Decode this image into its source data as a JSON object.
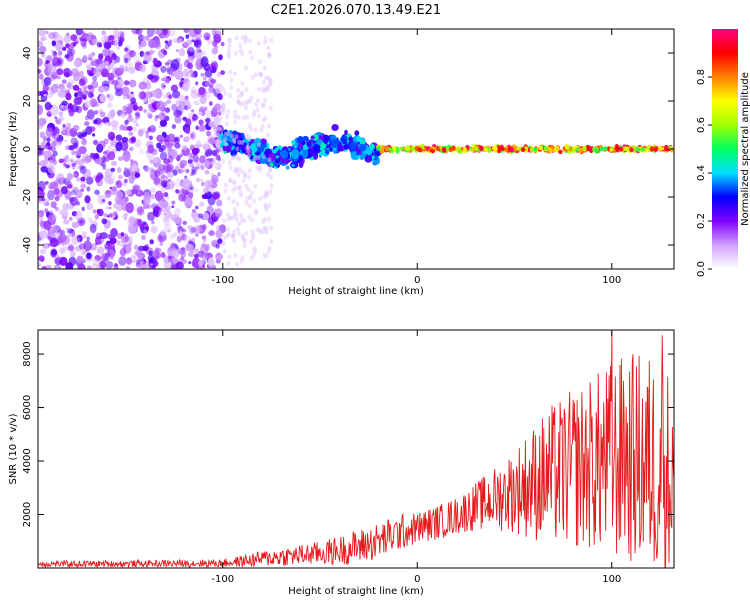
{
  "title": "C2E1.2026.070.13.49.E21",
  "colors": {
    "axis": "#000000",
    "snr_line": "#e41a1c",
    "speckle": "#6a00ff",
    "background": "#ffffff"
  },
  "chart_data": [
    {
      "type": "heatmap",
      "name": "spectrogram",
      "xlabel": "Height of straight line (km)",
      "ylabel": "Frequency (Hz)",
      "xlim": [
        -195,
        132
      ],
      "ylim": [
        -50,
        50
      ],
      "xticks": [
        -100,
        0,
        100
      ],
      "yticks": [
        -40,
        -20,
        0,
        20,
        40
      ],
      "xtick_labels": [
        "-100",
        "0",
        "100"
      ],
      "ytick_labels": [
        "-40",
        "-20",
        "0",
        "20",
        "40"
      ],
      "grid": false,
      "description_regions": [
        {
          "x_range": [
            -195,
            -100
          ],
          "freq_spread": 50,
          "amplitude": [
            0.05,
            0.25
          ],
          "density": "dense"
        },
        {
          "x_range": [
            -100,
            -20
          ],
          "freq_spread": 12,
          "amplitude": [
            0.2,
            0.45
          ],
          "density": "medium"
        },
        {
          "x_range": [
            -20,
            132
          ],
          "freq_spread": 3,
          "amplitude": [
            0.5,
            1.0
          ],
          "density": "tone"
        }
      ],
      "colorbar": {
        "label": "Normalized spectral amplitude",
        "range": [
          0,
          1
        ],
        "ticks": [
          0.0,
          0.2,
          0.4,
          0.6,
          0.8
        ],
        "tick_labels": [
          "0.0",
          "0.2",
          "0.4",
          "0.6",
          "0.8"
        ],
        "colormap": [
          "#ffffff",
          "#d0a0ff",
          "#8000ff",
          "#0000ff",
          "#00e0ff",
          "#00ff60",
          "#a0ff00",
          "#ffff00",
          "#ff8000",
          "#ff0000",
          "#ff0080"
        ]
      }
    },
    {
      "type": "line",
      "name": "snr",
      "xlabel": "Height of straight line (km)",
      "ylabel": "SNR (10 * v/v)",
      "xlim": [
        -195,
        132
      ],
      "ylim": [
        0,
        8900
      ],
      "xticks": [
        -100,
        0,
        100
      ],
      "yticks": [
        2000,
        4000,
        6000,
        8000
      ],
      "xtick_labels": [
        "-100",
        "0",
        "100"
      ],
      "ytick_labels": [
        "2000",
        "4000",
        "6000",
        "8000"
      ],
      "grid": false,
      "series": [
        {
          "name": "SNR",
          "envelope_x": [
            -195,
            -150,
            -100,
            -90,
            -80,
            -70,
            -60,
            -50,
            -40,
            -30,
            -20,
            -10,
            0,
            10,
            20,
            30,
            40,
            50,
            60,
            70,
            80,
            90,
            100,
            110,
            120,
            130
          ],
          "envelope_mean": [
            150,
            160,
            180,
            250,
            350,
            420,
            480,
            560,
            650,
            800,
            1000,
            1300,
            1500,
            1700,
            1950,
            2300,
            2600,
            2900,
            3200,
            3500,
            3700,
            3900,
            4000,
            4100,
            3900,
            3500
          ],
          "envelope_amp": [
            120,
            120,
            150,
            220,
            300,
            350,
            400,
            450,
            550,
            650,
            700,
            700,
            600,
            650,
            700,
            900,
            1200,
            1600,
            2200,
            2700,
            3000,
            3300,
            3800,
            4000,
            4200,
            4000
          ],
          "peaks": [
            {
              "x": 100,
              "y": 8900
            },
            {
              "x": 126,
              "y": 8700
            },
            {
              "x": 106,
              "y": 7000
            }
          ]
        }
      ]
    }
  ]
}
